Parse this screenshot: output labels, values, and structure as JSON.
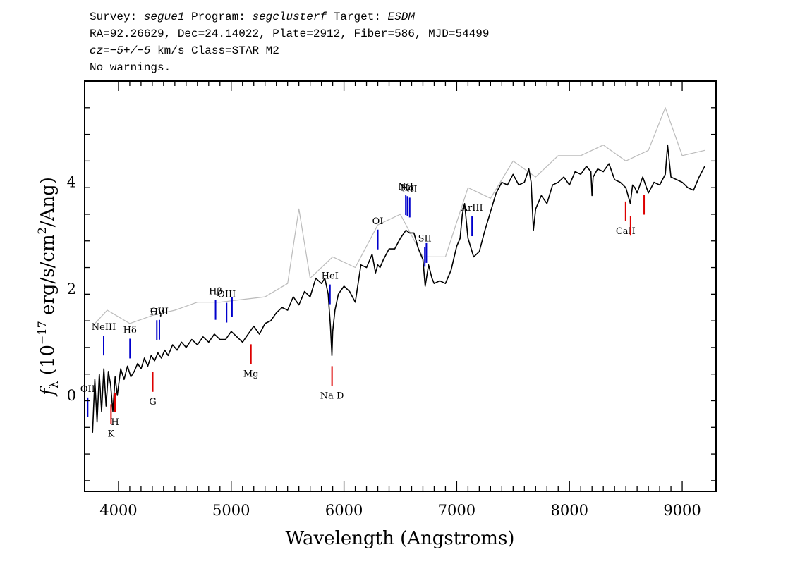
{
  "header": {
    "line1": {
      "survey_label": "Survey:",
      "survey": "segue1",
      "program_label": "Program:",
      "program": "segclusterf",
      "target_label": "Target:",
      "target": "ESDM"
    },
    "line2": "RA=92.26629, Dec=24.14022, Plate=2912, Fiber=586, MJD=54499",
    "line3": {
      "cz": "cz=−5+/−5",
      "rest": " km/s Class=STAR M2"
    },
    "line4": "No warnings."
  },
  "chart_data": {
    "type": "line",
    "xlabel": "Wavelength (Angstroms)",
    "ylabel": "f_λ (10^-17 erg/s/cm^2/Ang)",
    "xlim": [
      3700,
      9300
    ],
    "ylim": [
      -1.8,
      5.9
    ],
    "x_ticks": [
      4000,
      5000,
      6000,
      7000,
      8000,
      9000
    ],
    "y_ticks": [
      0,
      2,
      4
    ],
    "grid": false,
    "series": [
      {
        "style": "flux (black)",
        "color": "#000000",
        "x": [
          3770,
          3790,
          3810,
          3830,
          3850,
          3870,
          3890,
          3910,
          3930,
          3950,
          3970,
          3990,
          4020,
          4050,
          4080,
          4110,
          4140,
          4170,
          4200,
          4230,
          4260,
          4290,
          4320,
          4350,
          4380,
          4410,
          4440,
          4480,
          4520,
          4560,
          4600,
          4650,
          4700,
          4750,
          4800,
          4850,
          4900,
          4950,
          5000,
          5050,
          5100,
          5150,
          5200,
          5250,
          5300,
          5350,
          5400,
          5450,
          5500,
          5550,
          5600,
          5650,
          5700,
          5750,
          5800,
          5830,
          5860,
          5880,
          5893,
          5900,
          5920,
          5950,
          6000,
          6050,
          6100,
          6150,
          6200,
          6250,
          6280,
          6300,
          6320,
          6350,
          6400,
          6450,
          6500,
          6550,
          6580,
          6620,
          6660,
          6700,
          6720,
          6750,
          6780,
          6800,
          6850,
          6900,
          6950,
          7000,
          7030,
          7050,
          7070,
          7100,
          7150,
          7200,
          7250,
          7300,
          7350,
          7400,
          7450,
          7500,
          7550,
          7600,
          7640,
          7660,
          7680,
          7700,
          7750,
          7800,
          7850,
          7900,
          7950,
          8000,
          8050,
          8100,
          8150,
          8190,
          8200,
          8210,
          8250,
          8300,
          8350,
          8400,
          8450,
          8500,
          8540,
          8560,
          8580,
          8600,
          8650,
          8700,
          8750,
          8800,
          8850,
          8870,
          8900,
          8950,
          9000,
          9050,
          9100,
          9150,
          9200
        ],
        "y": [
          -0.7,
          0.3,
          -0.5,
          0.4,
          -0.3,
          0.5,
          -0.2,
          0.45,
          0.2,
          -0.3,
          0.35,
          0.0,
          0.5,
          0.3,
          0.55,
          0.35,
          0.45,
          0.6,
          0.5,
          0.7,
          0.55,
          0.75,
          0.65,
          0.8,
          0.7,
          0.85,
          0.75,
          0.95,
          0.85,
          1.0,
          0.9,
          1.05,
          0.95,
          1.1,
          1.0,
          1.15,
          1.05,
          1.05,
          1.2,
          1.1,
          1.0,
          1.15,
          1.3,
          1.15,
          1.35,
          1.4,
          1.55,
          1.65,
          1.6,
          1.85,
          1.7,
          1.95,
          1.85,
          2.2,
          2.1,
          2.2,
          1.9,
          1.3,
          0.75,
          1.2,
          1.6,
          1.9,
          2.05,
          1.95,
          1.75,
          2.45,
          2.4,
          2.65,
          2.3,
          2.45,
          2.4,
          2.55,
          2.75,
          2.75,
          2.95,
          3.1,
          3.05,
          3.05,
          2.75,
          2.55,
          2.05,
          2.45,
          2.2,
          2.1,
          2.15,
          2.1,
          2.35,
          2.8,
          2.95,
          3.4,
          3.6,
          2.95,
          2.6,
          2.7,
          3.1,
          3.45,
          3.8,
          4.0,
          3.95,
          4.15,
          3.95,
          4.0,
          4.25,
          4.0,
          3.1,
          3.5,
          3.75,
          3.6,
          3.95,
          4.0,
          4.1,
          3.95,
          4.2,
          4.15,
          4.3,
          4.2,
          3.75,
          4.1,
          4.25,
          4.2,
          4.35,
          4.05,
          4.0,
          3.9,
          3.6,
          3.95,
          3.9,
          3.8,
          4.1,
          3.8,
          4.0,
          3.95,
          4.15,
          4.7,
          4.1,
          4.05,
          4.0,
          3.9,
          3.85,
          4.1,
          4.3
        ]
      },
      {
        "style": "error (grey)",
        "color": "#bbbbbb",
        "x": [
          3770,
          3900,
          4100,
          4300,
          4500,
          4700,
          4900,
          5100,
          5300,
          5500,
          5600,
          5700,
          5900,
          6100,
          6300,
          6500,
          6700,
          6900,
          7100,
          7300,
          7500,
          7700,
          7900,
          8100,
          8300,
          8500,
          8700,
          8850,
          9000,
          9200
        ],
        "y": [
          1.3,
          1.6,
          1.35,
          1.5,
          1.6,
          1.75,
          1.75,
          1.8,
          1.85,
          2.1,
          3.5,
          2.2,
          2.6,
          2.4,
          3.2,
          3.4,
          2.6,
          2.6,
          3.9,
          3.7,
          4.4,
          4.1,
          4.5,
          4.5,
          4.7,
          4.4,
          4.6,
          5.4,
          4.5,
          4.6
        ]
      }
    ],
    "annotations": [
      {
        "label": "OII",
        "x": 3727,
        "color": "#0000cc",
        "kind": "emission"
      },
      {
        "label": "NeIII",
        "x": 3869,
        "color": "#0000cc",
        "kind": "emission"
      },
      {
        "label": "Hδ",
        "x": 4102,
        "color": "#0000cc",
        "kind": "emission"
      },
      {
        "label": "Hγ",
        "x": 4340,
        "color": "#0000cc",
        "kind": "emission"
      },
      {
        "label": "OIII",
        "x": 4363,
        "color": "#0000cc",
        "kind": "emission"
      },
      {
        "label": "Hβ",
        "x": 4861,
        "color": "#0000cc",
        "kind": "emission"
      },
      {
        "label": "OIII",
        "x": 4959,
        "color": "#0000cc",
        "kind": "emission"
      },
      {
        "label": "OIII",
        "x": 5007,
        "color": "#0000cc",
        "kind": "emission",
        "hidden_label": true
      },
      {
        "label": "HeI",
        "x": 5876,
        "color": "#0000cc",
        "kind": "emission"
      },
      {
        "label": "OI",
        "x": 6300,
        "color": "#0000cc",
        "kind": "emission"
      },
      {
        "label": "NII",
        "x": 6548,
        "color": "#0000cc",
        "kind": "emission"
      },
      {
        "label": "Hα",
        "x": 6563,
        "color": "#0000cc",
        "kind": "emission"
      },
      {
        "label": "NII",
        "x": 6583,
        "color": "#0000cc",
        "kind": "emission"
      },
      {
        "label": "SII",
        "x": 6717,
        "color": "#0000cc",
        "kind": "emission"
      },
      {
        "label": "SII",
        "x": 6731,
        "color": "#0000cc",
        "kind": "emission",
        "hidden_label": true
      },
      {
        "label": "ArIII",
        "x": 7136,
        "color": "#0000cc",
        "kind": "emission"
      },
      {
        "label": "K",
        "x": 3934,
        "color": "#dd0000",
        "kind": "absorption"
      },
      {
        "label": "H",
        "x": 3969,
        "color": "#dd0000",
        "kind": "absorption"
      },
      {
        "label": "G",
        "x": 4304,
        "color": "#dd0000",
        "kind": "absorption"
      },
      {
        "label": "Mg",
        "x": 5175,
        "color": "#dd0000",
        "kind": "absorption"
      },
      {
        "label": "Na D",
        "x": 5894,
        "color": "#dd0000",
        "kind": "absorption"
      },
      {
        "label": "CaII",
        "x": 8498,
        "color": "#dd0000",
        "kind": "absorption"
      },
      {
        "label": "CaII",
        "x": 8542,
        "color": "#dd0000",
        "kind": "absorption",
        "hidden_label": true
      },
      {
        "label": "CaII",
        "x": 8662,
        "color": "#dd0000",
        "kind": "absorption",
        "hidden_label": true
      }
    ]
  }
}
